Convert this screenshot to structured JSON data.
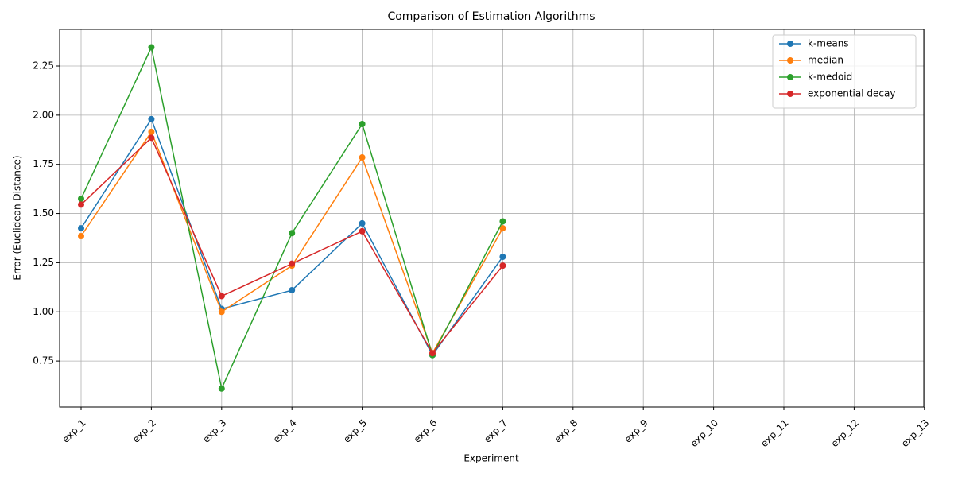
{
  "chart_data": {
    "type": "line",
    "title": "Comparison of Estimation Algorithms",
    "x_label": "Experiment",
    "y_label": "Error (Euclidean Distance)",
    "categories": [
      "exp_1",
      "exp_2",
      "exp_3",
      "exp_4",
      "exp_5",
      "exp_6",
      "exp_7",
      "exp_8",
      "exp_9",
      "exp_10",
      "exp_11",
      "exp_12",
      "exp_13"
    ],
    "series": [
      {
        "name": "k-means",
        "color": "#1f77b4",
        "values": [
          1.425,
          1.98,
          1.015,
          1.11,
          1.45,
          0.78,
          1.28,
          null,
          null,
          null,
          null,
          null,
          null
        ]
      },
      {
        "name": "median",
        "color": "#ff7f0e",
        "values": [
          1.385,
          1.915,
          1.0,
          1.235,
          1.785,
          0.79,
          1.425,
          null,
          null,
          null,
          null,
          null,
          null
        ]
      },
      {
        "name": "k-medoid",
        "color": "#2ca02c",
        "values": [
          1.575,
          2.345,
          0.61,
          1.4,
          1.955,
          0.78,
          1.46,
          null,
          null,
          null,
          null,
          null,
          null
        ]
      },
      {
        "name": "exponential decay",
        "color": "#d62728",
        "values": [
          1.545,
          1.885,
          1.08,
          1.245,
          1.41,
          0.79,
          1.235,
          null,
          null,
          null,
          null,
          null,
          null
        ]
      }
    ],
    "ylim": [
      0.516,
      2.436
    ],
    "yticks": [
      0.75,
      {
        "value": 1,
        "label": "1.00"
      },
      1.25,
      {
        "value": 1.5,
        "label": "1.50"
      },
      1.75,
      {
        "value": 2,
        "label": "2.00"
      },
      2.25
    ],
    "grid": true,
    "legend": "upper right"
  }
}
